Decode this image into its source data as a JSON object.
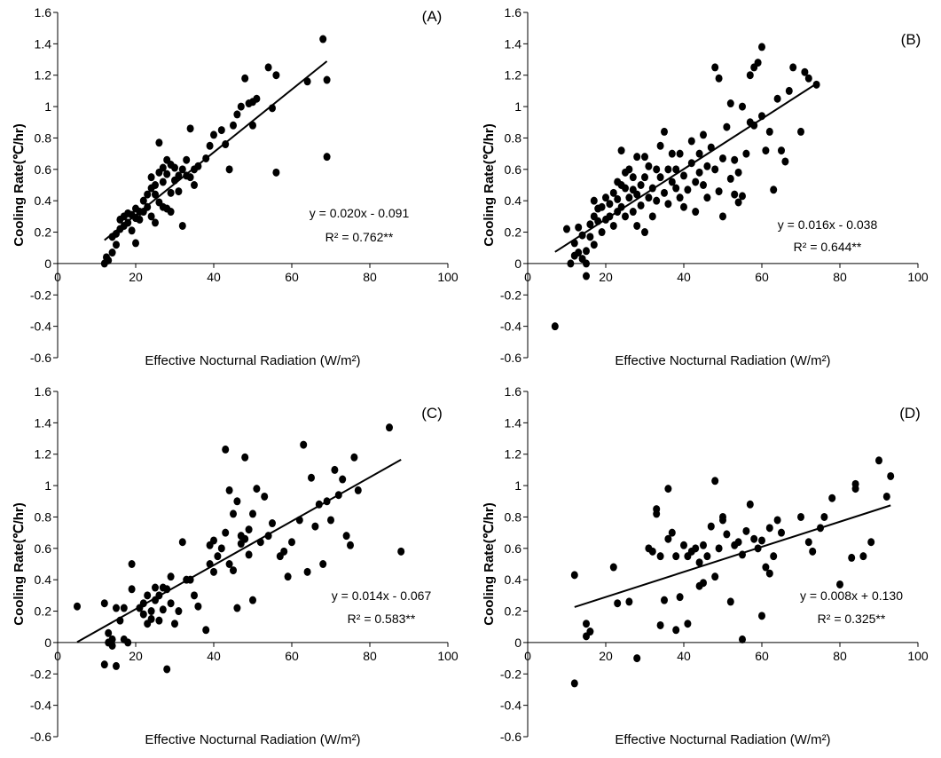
{
  "chart_data": [
    {
      "type": "scatter",
      "panel_label": "(A)",
      "xlabel": "Effective Nocturnal Radiation (W/m²)",
      "ylabel": "Cooling Rate(℃/hr)",
      "xlim": [
        0,
        100
      ],
      "ylim": [
        -0.6,
        1.6
      ],
      "xticks": [
        "0",
        "20",
        "40",
        "60",
        "80",
        "100"
      ],
      "yticks": [
        "-0.6",
        "-0.4",
        "-0.2",
        "0",
        "0.2",
        "0.4",
        "0.6",
        "0.8",
        "1",
        "1.2",
        "1.4",
        "1.6"
      ],
      "equation": "y = 0.020x - 0.091",
      "r2": "R² = 0.762**",
      "trendline": {
        "slope": 0.02,
        "intercept": -0.091,
        "x_range": [
          12,
          69
        ]
      },
      "x": [
        12,
        12.5,
        13,
        14,
        14,
        15,
        15,
        16,
        16,
        17,
        17,
        18,
        18,
        19,
        19,
        20,
        20,
        20,
        21,
        21,
        22,
        22,
        23,
        23,
        24,
        24,
        24,
        25,
        25,
        25,
        26,
        26,
        26,
        27,
        27,
        27,
        28,
        28,
        28,
        29,
        29,
        29,
        30,
        30,
        31,
        31,
        32,
        32,
        33,
        33,
        34,
        34,
        35,
        35,
        36,
        38,
        39,
        40,
        42,
        43,
        44,
        45,
        46,
        47,
        48,
        49,
        50,
        50,
        51,
        54,
        55,
        56,
        56,
        64,
        68,
        69,
        69
      ],
      "y": [
        0.0,
        0.04,
        0.02,
        0.17,
        0.07,
        0.19,
        0.12,
        0.22,
        0.28,
        0.24,
        0.3,
        0.26,
        0.32,
        0.31,
        0.21,
        0.35,
        0.29,
        0.13,
        0.28,
        0.33,
        0.4,
        0.33,
        0.44,
        0.36,
        0.55,
        0.48,
        0.3,
        0.5,
        0.44,
        0.26,
        0.77,
        0.58,
        0.39,
        0.61,
        0.52,
        0.36,
        0.66,
        0.57,
        0.35,
        0.63,
        0.45,
        0.33,
        0.61,
        0.53,
        0.56,
        0.46,
        0.6,
        0.24,
        0.66,
        0.56,
        0.86,
        0.55,
        0.6,
        0.5,
        0.62,
        0.67,
        0.75,
        0.82,
        0.85,
        0.76,
        0.6,
        0.88,
        0.95,
        1.0,
        1.18,
        1.02,
        1.03,
        0.88,
        1.05,
        1.25,
        0.99,
        1.2,
        0.58,
        1.16,
        1.43,
        1.17,
        0.68
      ]
    },
    {
      "type": "scatter",
      "panel_label": "(B)",
      "xlabel": "Effective Nocturnal Radiation (W/m²)",
      "ylabel": "Cooling Rate(℃/hr)",
      "xlim": [
        0,
        100
      ],
      "ylim": [
        -0.6,
        1.6
      ],
      "xticks": [
        "0",
        "20",
        "40",
        "60",
        "80",
        "100"
      ],
      "yticks": [
        "-0.6",
        "-0.4",
        "-0.2",
        "0",
        "0.2",
        "0.4",
        "0.6",
        "0.8",
        "1",
        "1.2",
        "1.4",
        "1.6"
      ],
      "equation": "y = 0.016x - 0.038",
      "r2": "R² = 0.644**",
      "trendline": {
        "slope": 0.016,
        "intercept": -0.038,
        "x_range": [
          7,
          74
        ]
      },
      "x": [
        7,
        10,
        11,
        12,
        12,
        13,
        13,
        14,
        14,
        15,
        15,
        15,
        16,
        16,
        17,
        17,
        17,
        18,
        18,
        19,
        19,
        20,
        20,
        21,
        21,
        22,
        22,
        23,
        23,
        23,
        24,
        24,
        24,
        25,
        25,
        25,
        26,
        26,
        27,
        27,
        27,
        28,
        28,
        28,
        29,
        29,
        30,
        30,
        30,
        31,
        31,
        32,
        32,
        33,
        33,
        34,
        34,
        35,
        35,
        36,
        36,
        37,
        37,
        38,
        38,
        39,
        39,
        40,
        40,
        41,
        42,
        42,
        43,
        43,
        44,
        44,
        45,
        45,
        46,
        46,
        47,
        48,
        48,
        49,
        49,
        50,
        50,
        51,
        52,
        52,
        53,
        53,
        54,
        54,
        55,
        55,
        56,
        57,
        57,
        58,
        58,
        59,
        60,
        60,
        61,
        62,
        63,
        64,
        65,
        66,
        67,
        68,
        70,
        71,
        72,
        74
      ],
      "y": [
        -0.4,
        0.22,
        0.0,
        0.13,
        0.05,
        0.23,
        0.07,
        0.18,
        0.03,
        0.0,
        0.08,
        -0.08,
        0.17,
        0.25,
        0.3,
        0.12,
        0.4,
        0.27,
        0.35,
        0.2,
        0.36,
        0.42,
        0.28,
        0.38,
        0.3,
        0.45,
        0.24,
        0.52,
        0.33,
        0.41,
        0.72,
        0.36,
        0.5,
        0.48,
        0.3,
        0.58,
        0.42,
        0.6,
        0.55,
        0.33,
        0.47,
        0.68,
        0.44,
        0.24,
        0.5,
        0.37,
        0.68,
        0.55,
        0.2,
        0.42,
        0.62,
        0.48,
        0.3,
        0.6,
        0.4,
        0.55,
        0.75,
        0.45,
        0.84,
        0.6,
        0.38,
        0.52,
        0.7,
        0.6,
        0.48,
        0.7,
        0.42,
        0.56,
        0.36,
        0.47,
        0.64,
        0.78,
        0.52,
        0.33,
        0.7,
        0.58,
        0.5,
        0.82,
        0.62,
        0.42,
        0.74,
        1.25,
        0.6,
        0.46,
        1.18,
        0.67,
        0.3,
        0.87,
        0.54,
        1.02,
        0.66,
        0.44,
        0.58,
        0.39,
        0.43,
        1.0,
        0.7,
        1.2,
        0.9,
        1.25,
        0.88,
        1.28,
        0.94,
        1.38,
        0.72,
        0.84,
        0.47,
        1.05,
        0.72,
        0.65,
        1.1,
        1.25,
        0.84,
        1.22,
        1.18,
        1.14
      ]
    },
    {
      "type": "scatter",
      "panel_label": "(C)",
      "xlabel": "Effective Nocturnal Radiation (W/m²)",
      "ylabel": "Cooling Rate(℃/hr)",
      "xlim": [
        0,
        100
      ],
      "ylim": [
        -0.6,
        1.6
      ],
      "xticks": [
        "0",
        "20",
        "40",
        "60",
        "80",
        "100"
      ],
      "yticks": [
        "-0.6",
        "-0.4",
        "-0.2",
        "0",
        "0.2",
        "0.4",
        "0.6",
        "0.8",
        "1",
        "1.2",
        "1.4",
        "1.6"
      ],
      "equation": "y = 0.014x - 0.067",
      "r2": "R² = 0.583**",
      "trendline": {
        "slope": 0.014,
        "intercept": -0.067,
        "x_range": [
          5,
          88
        ]
      },
      "x": [
        5,
        12,
        12,
        13,
        13,
        14,
        14,
        15,
        15,
        16,
        17,
        17,
        18,
        19,
        19,
        21,
        22,
        22,
        23,
        23,
        24,
        24,
        25,
        25,
        26,
        26,
        27,
        27,
        28,
        28,
        29,
        29,
        30,
        31,
        32,
        33,
        34,
        35,
        36,
        38,
        39,
        39,
        40,
        40,
        41,
        42,
        43,
        43,
        44,
        44,
        45,
        45,
        46,
        46,
        47,
        47,
        48,
        48,
        49,
        49,
        50,
        50,
        51,
        52,
        53,
        54,
        55,
        57,
        58,
        59,
        60,
        62,
        63,
        64,
        65,
        66,
        67,
        68,
        69,
        70,
        71,
        72,
        73,
        74,
        75,
        76,
        77,
        85,
        88
      ],
      "y": [
        0.23,
        0.25,
        -0.14,
        0.06,
        0.0,
        0.02,
        -0.02,
        -0.15,
        0.22,
        0.14,
        0.22,
        0.02,
        0.0,
        0.5,
        0.34,
        0.22,
        0.18,
        0.25,
        0.12,
        0.3,
        0.2,
        0.15,
        0.35,
        0.27,
        0.14,
        0.3,
        0.35,
        0.21,
        0.34,
        -0.17,
        0.42,
        0.25,
        0.12,
        0.2,
        0.64,
        0.4,
        0.4,
        0.3,
        0.23,
        0.08,
        0.5,
        0.62,
        0.65,
        0.45,
        0.55,
        0.6,
        0.7,
        1.23,
        0.97,
        0.5,
        0.82,
        0.46,
        0.9,
        0.22,
        0.63,
        0.68,
        1.18,
        0.66,
        0.56,
        0.72,
        0.82,
        0.27,
        0.98,
        0.64,
        0.93,
        0.68,
        0.76,
        0.55,
        0.58,
        0.42,
        0.64,
        0.78,
        1.26,
        0.45,
        1.05,
        0.74,
        0.88,
        0.5,
        0.9,
        0.78,
        1.1,
        0.94,
        1.04,
        0.68,
        0.62,
        1.18,
        0.97,
        1.37,
        0.58
      ]
    },
    {
      "type": "scatter",
      "panel_label": "(D)",
      "xlabel": "Effective Nocturnal Radiation (W/m²)",
      "ylabel": "Cooling Rate(℃/hr)",
      "xlim": [
        0,
        100
      ],
      "ylim": [
        -0.6,
        1.6
      ],
      "xticks": [
        "0",
        "20",
        "40",
        "60",
        "80",
        "100"
      ],
      "yticks": [
        "-0.6",
        "-0.4",
        "-0.2",
        "0",
        "0.2",
        "0.4",
        "0.6",
        "0.8",
        "1",
        "1.2",
        "1.4",
        "1.6"
      ],
      "equation": "y = 0.008x + 0.130",
      "r2": "R² = 0.325**",
      "trendline": {
        "slope": 0.008,
        "intercept": 0.13,
        "x_range": [
          12,
          93
        ]
      },
      "x": [
        12,
        12,
        15,
        15,
        16,
        22,
        23,
        26,
        28,
        31,
        32,
        33,
        33,
        34,
        34,
        35,
        36,
        36,
        37,
        38,
        38,
        39,
        40,
        41,
        41,
        42,
        43,
        44,
        44,
        45,
        45,
        46,
        47,
        48,
        48,
        49,
        50,
        50,
        51,
        52,
        53,
        54,
        55,
        55,
        56,
        57,
        58,
        59,
        60,
        60,
        61,
        62,
        62,
        63,
        64,
        65,
        70,
        72,
        73,
        75,
        76,
        78,
        80,
        83,
        84,
        84,
        86,
        88,
        90,
        92,
        93
      ],
      "y": [
        -0.26,
        0.43,
        0.12,
        0.04,
        0.07,
        0.48,
        0.25,
        0.26,
        -0.1,
        0.6,
        0.58,
        0.85,
        0.82,
        0.55,
        0.11,
        0.27,
        0.98,
        0.66,
        0.7,
        0.08,
        0.55,
        0.29,
        0.62,
        0.55,
        0.12,
        0.58,
        0.6,
        0.51,
        0.36,
        0.38,
        0.62,
        0.55,
        0.74,
        0.42,
        1.03,
        0.6,
        0.78,
        0.8,
        0.69,
        0.26,
        0.62,
        0.64,
        0.02,
        0.56,
        0.71,
        0.88,
        0.66,
        0.6,
        0.17,
        0.65,
        0.48,
        0.73,
        0.44,
        0.55,
        0.78,
        0.7,
        0.8,
        0.64,
        0.58,
        0.73,
        0.8,
        0.92,
        0.37,
        0.54,
        0.98,
        1.01,
        0.55,
        0.64,
        1.16,
        0.93,
        1.06
      ]
    }
  ]
}
